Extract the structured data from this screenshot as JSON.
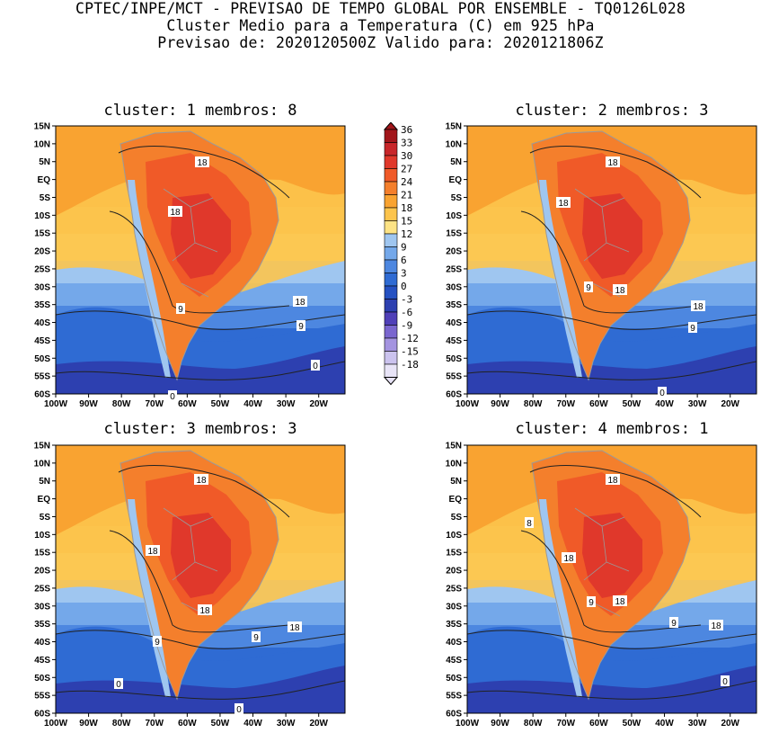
{
  "header": {
    "line1": "CPTEC/INPE/MCT - PREVISAO DE TEMPO GLOBAL POR ENSEMBLE - TQ0126L028",
    "line2": "Cluster Medio para a Temperatura (C) em 925 hPa",
    "line3": "Previsao de: 2020120500Z   Valido para: 2020121806Z"
  },
  "axes": {
    "lat_labels": [
      "15N",
      "10N",
      "5N",
      "EQ",
      "5S",
      "10S",
      "15S",
      "20S",
      "25S",
      "30S",
      "35S",
      "40S",
      "45S",
      "50S",
      "55S",
      "60S"
    ],
    "lon_labels": [
      "100W",
      "90W",
      "80W",
      "70W",
      "60W",
      "50W",
      "40W",
      "30W",
      "20W"
    ]
  },
  "colorbar": {
    "levels": [
      "36",
      "33",
      "30",
      "27",
      "24",
      "21",
      "18",
      "15",
      "12",
      "9",
      "6",
      "3",
      "0",
      "-3",
      "-6",
      "-9",
      "-12",
      "-15",
      "-18"
    ],
    "colors": [
      "#a2161b",
      "#c8262a",
      "#e0382b",
      "#f05a28",
      "#f47f2c",
      "#f9a331",
      "#fcc44c",
      "#fde385",
      "#9fc6f0",
      "#74a8ea",
      "#4d87e0",
      "#2f6bd3",
      "#2551c2",
      "#2d40b0",
      "#5040b8",
      "#7a66cf",
      "#a494e0",
      "#cbc3ee",
      "#e8e4f7"
    ]
  },
  "panels": [
    {
      "title": "cluster: 1   membros: 8",
      "labels": [
        {
          "text": "18"
        },
        {
          "text": "18"
        },
        {
          "text": "18"
        },
        {
          "text": "9"
        },
        {
          "text": "9"
        },
        {
          "text": "0"
        },
        {
          "text": "0"
        }
      ]
    },
    {
      "title": "cluster: 2   membros: 3",
      "labels": [
        {
          "text": "18"
        },
        {
          "text": "18"
        },
        {
          "text": "18"
        },
        {
          "text": "18"
        },
        {
          "text": "9"
        },
        {
          "text": "9"
        },
        {
          "text": "0"
        }
      ]
    },
    {
      "title": "cluster: 3   membros: 3",
      "labels": [
        {
          "text": "18"
        },
        {
          "text": "18"
        },
        {
          "text": "18"
        },
        {
          "text": "18"
        },
        {
          "text": "9"
        },
        {
          "text": "9"
        },
        {
          "text": "0"
        },
        {
          "text": "0"
        }
      ]
    },
    {
      "title": "cluster: 4   membros: 1",
      "labels": [
        {
          "text": "18"
        },
        {
          "text": "8"
        },
        {
          "text": "18"
        },
        {
          "text": "18"
        },
        {
          "text": "18"
        },
        {
          "text": "9"
        },
        {
          "text": "9"
        },
        {
          "text": "0"
        }
      ]
    }
  ]
}
